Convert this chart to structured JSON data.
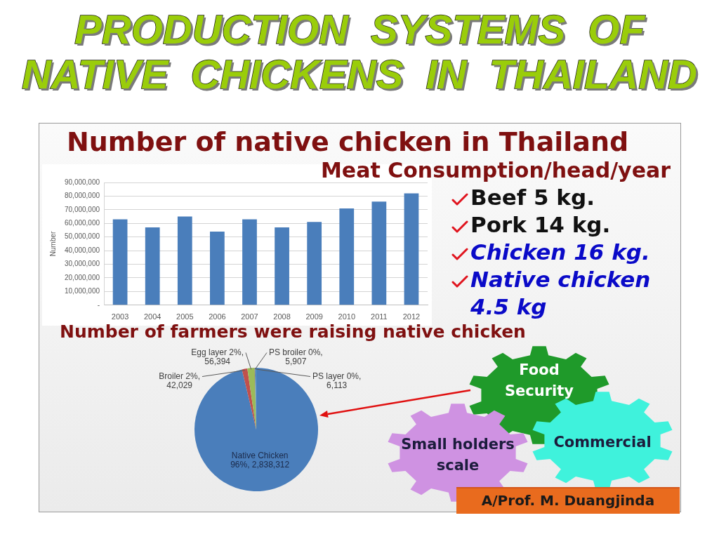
{
  "chart_data": [
    {
      "type": "other",
      "title": "PRODUCTION SYSTEMS OF NATIVE CHICKENS IN THAILAND"
    },
    {
      "type": "bar",
      "title": "Number of native chicken in Thailand",
      "categories": [
        "2003",
        "2004",
        "2005",
        "2006",
        "2007",
        "2008",
        "2009",
        "2010",
        "2011",
        "2012"
      ],
      "values": [
        63000000,
        57000000,
        65000000,
        54000000,
        63000000,
        57000000,
        61000000,
        71000000,
        76000000,
        82000000
      ],
      "color": "#4a7ebb",
      "ylabel": "Number",
      "ylim": [
        0,
        90000000
      ],
      "yticks": [
        {
          "value": 0,
          "label": "-"
        },
        {
          "value": 10000000,
          "label": "10,000,000"
        },
        {
          "value": 20000000,
          "label": "20,000,000"
        },
        {
          "value": 30000000,
          "label": "30,000,000"
        },
        {
          "value": 40000000,
          "label": "40,000,000"
        },
        {
          "value": 50000000,
          "label": "50,000,000"
        },
        {
          "value": 60000000,
          "label": "60,000,000"
        },
        {
          "value": 70000000,
          "label": "70,000,000"
        },
        {
          "value": 80000000,
          "label": "80,000,000"
        },
        {
          "value": 90000000,
          "label": "90,000,000"
        }
      ],
      "grid": "y"
    },
    {
      "type": "other",
      "title": "Meat Consumption/head/year",
      "annotations": [
        "Beef 5 kg.",
        "Pork 14 kg.",
        "Chicken 16 kg.",
        "Native chicken 4.5 kg"
      ]
    },
    {
      "type": "pie",
      "title": "Number of farmers were raising native chicken",
      "categories": [
        "Native Chicken",
        "Broiler",
        "Egg layer",
        "PS broiler",
        "PS layer"
      ],
      "values": [
        2838312,
        42029,
        56394,
        5907,
        6113
      ],
      "colors": [
        "#4a7ebb",
        "#c0504d",
        "#9bbb59",
        "#8064a2",
        "#4bacc6"
      ],
      "value_labels": [
        "96%, 2,838,312",
        "2%, 42,029",
        "2%, 56,394",
        "0%, 5,907",
        "0%, 6,113"
      ]
    },
    {
      "type": "other",
      "annotations": [
        "Food Security",
        "Small holders scale",
        "Commercial",
        "A/Prof. M. Duangjinda"
      ]
    }
  ]
}
